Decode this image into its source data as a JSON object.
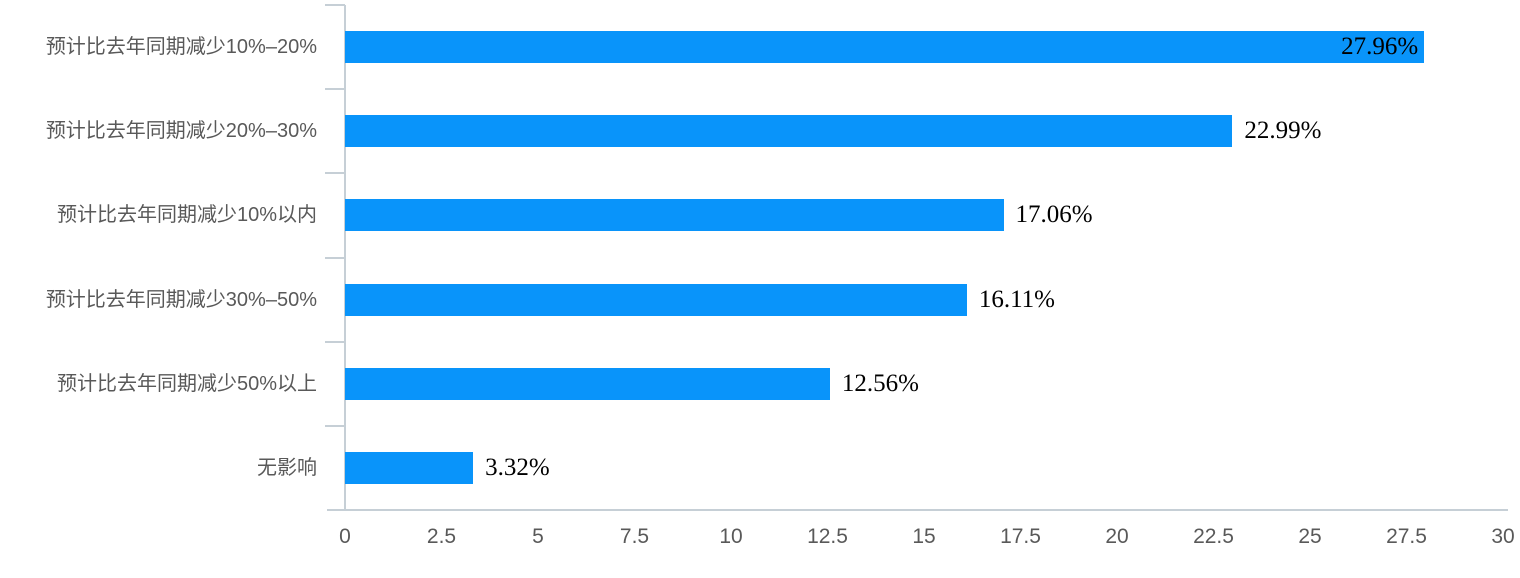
{
  "chart_data": {
    "type": "bar",
    "orientation": "horizontal",
    "title": "",
    "xlabel": "",
    "ylabel": "",
    "categories": [
      "预计比去年同期减少10%–20%",
      "预计比去年同期减少20%–30%",
      "预计比去年同期减少10%以内",
      "预计比去年同期减少30%–50%",
      "预计比去年同期减少50%以上",
      "无影响"
    ],
    "values": [
      27.96,
      22.99,
      17.06,
      16.11,
      12.56,
      3.32
    ],
    "value_labels": [
      "27.96%",
      "22.99%",
      "17.06%",
      "16.11%",
      "12.56%",
      "3.32%"
    ],
    "xlim": [
      0,
      30
    ],
    "x_tick_labels": [
      "0",
      "2.5",
      "5",
      "7.5",
      "10",
      "12.5",
      "15",
      "17.5",
      "20",
      "22.5",
      "25",
      "27.5",
      "30"
    ],
    "grid": false,
    "legend_position": "none",
    "colors": {
      "bar": "#0994fa",
      "axis_line": "#c6cfd6",
      "tick_text": "#595959",
      "value_text": "#000000"
    }
  }
}
